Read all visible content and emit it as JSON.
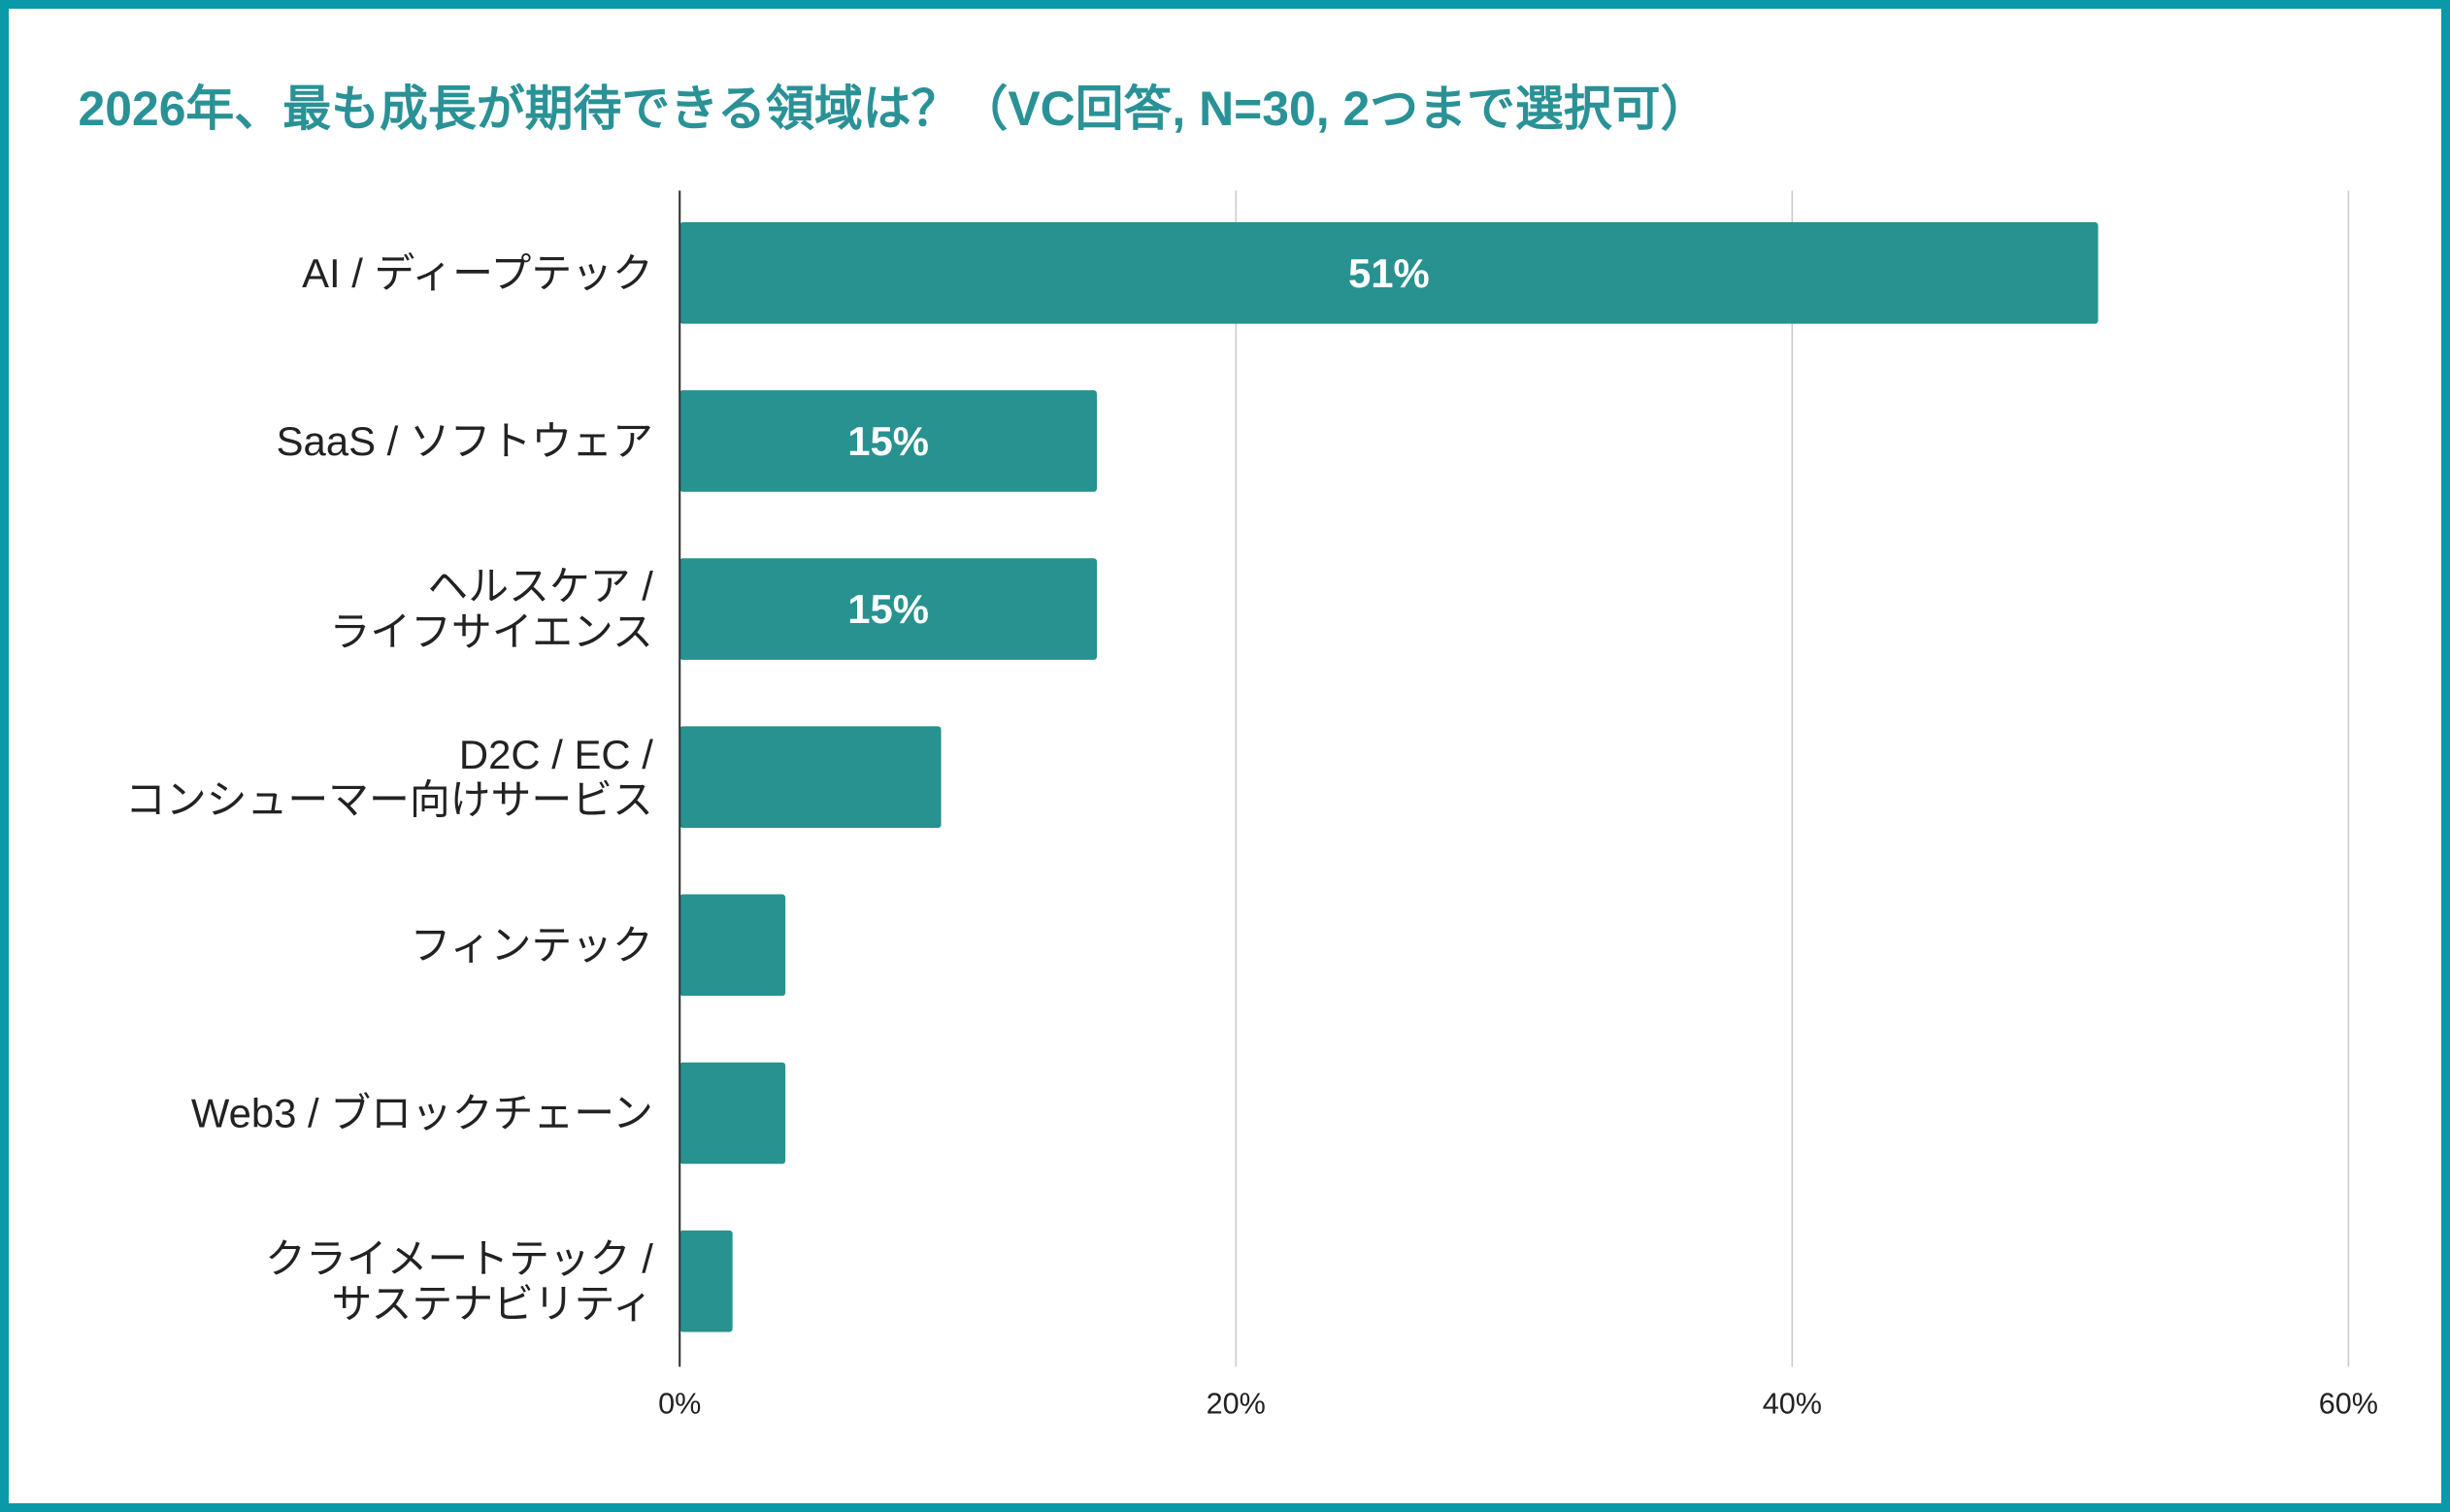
{
  "chart_data": {
    "type": "bar",
    "orientation": "horizontal",
    "title": "2026年、最も成長が期待できる領域は？（VC回答, N=30, 2つまで選択可）",
    "categories": [
      "AI / ディープテック",
      "SaaS / ソフトウェア",
      "ヘルスケア /\nライフサイエンス",
      "D2C / EC /\nコンシューマー向けサービス",
      "フィンテック",
      "Web3 / ブロックチェーン",
      "クライメートテック /\nサステナビリティ"
    ],
    "values": [
      51,
      15,
      15,
      9.4,
      3.8,
      3.8,
      1.9
    ],
    "data_labels": [
      "51%",
      "15%",
      "15%",
      null,
      null,
      null,
      null
    ],
    "xlabel": "",
    "ylabel": "",
    "xlim": [
      0,
      60
    ],
    "x_ticks": [
      "0%",
      "20%",
      "40%",
      "60%"
    ],
    "x_tick_values": [
      0,
      20,
      40,
      60
    ],
    "grid": true,
    "legend": "none",
    "colors": {
      "bar": "#27928f",
      "title": "#2a9296",
      "border": "#0a99a8",
      "grid": "#cccccc"
    }
  }
}
